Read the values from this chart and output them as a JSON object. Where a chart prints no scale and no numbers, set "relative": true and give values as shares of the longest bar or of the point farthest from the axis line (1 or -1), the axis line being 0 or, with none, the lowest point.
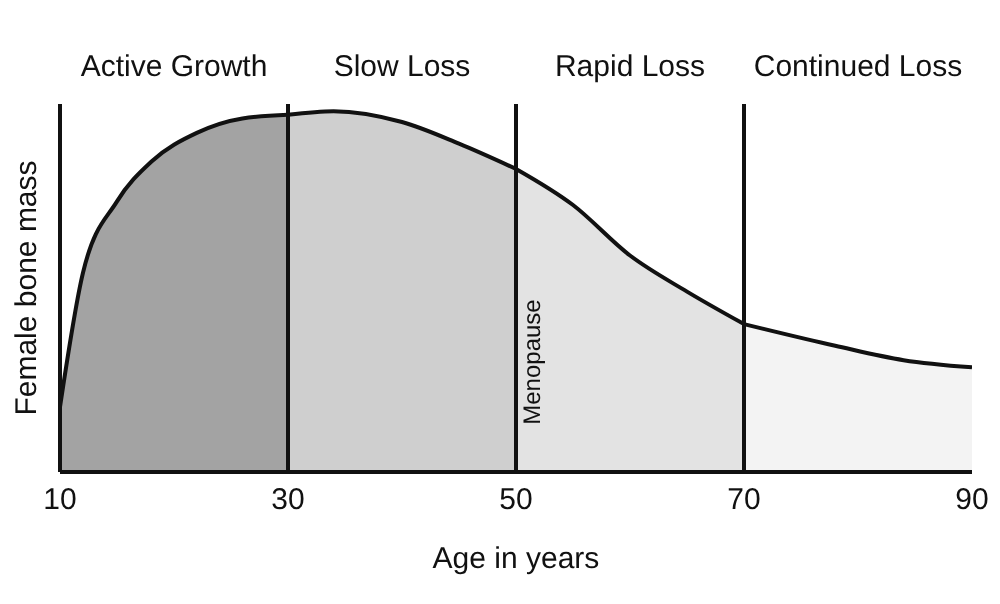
{
  "chart_data": {
    "type": "area",
    "xlabel": "Age in years",
    "ylabel": "Female bone mass",
    "relative": true,
    "xlim": [
      10,
      90
    ],
    "xticks": [
      10,
      30,
      50,
      70,
      90
    ],
    "grid": false,
    "legend": false,
    "series": [
      {
        "x": [
          10,
          12,
          15,
          18,
          22,
          26,
          30
        ],
        "values": [
          0.18,
          0.55,
          0.75,
          0.86,
          0.94,
          0.98,
          0.99
        ],
        "color": "#a3a3a3"
      },
      {
        "x": [
          30,
          34,
          40,
          45,
          50
        ],
        "values": [
          0.99,
          1.0,
          0.97,
          0.91,
          0.84
        ],
        "color": "#cfcfcf"
      },
      {
        "x": [
          50,
          55,
          60,
          65,
          70
        ],
        "values": [
          0.84,
          0.74,
          0.6,
          0.5,
          0.41
        ],
        "color": "#e3e3e3"
      },
      {
        "x": [
          70,
          78,
          84,
          90
        ],
        "values": [
          0.41,
          0.35,
          0.31,
          0.29
        ],
        "color": "#f3f3f3"
      }
    ],
    "annotations": [
      "Active Growth",
      "Slow Loss",
      "Rapid Loss",
      "Continued Loss"
    ],
    "ref_lines": [
      {
        "axis": "x",
        "value": 30,
        "label": null
      },
      {
        "axis": "x",
        "value": 50,
        "label": "Menopause"
      },
      {
        "axis": "x",
        "value": 70,
        "label": null
      }
    ]
  }
}
